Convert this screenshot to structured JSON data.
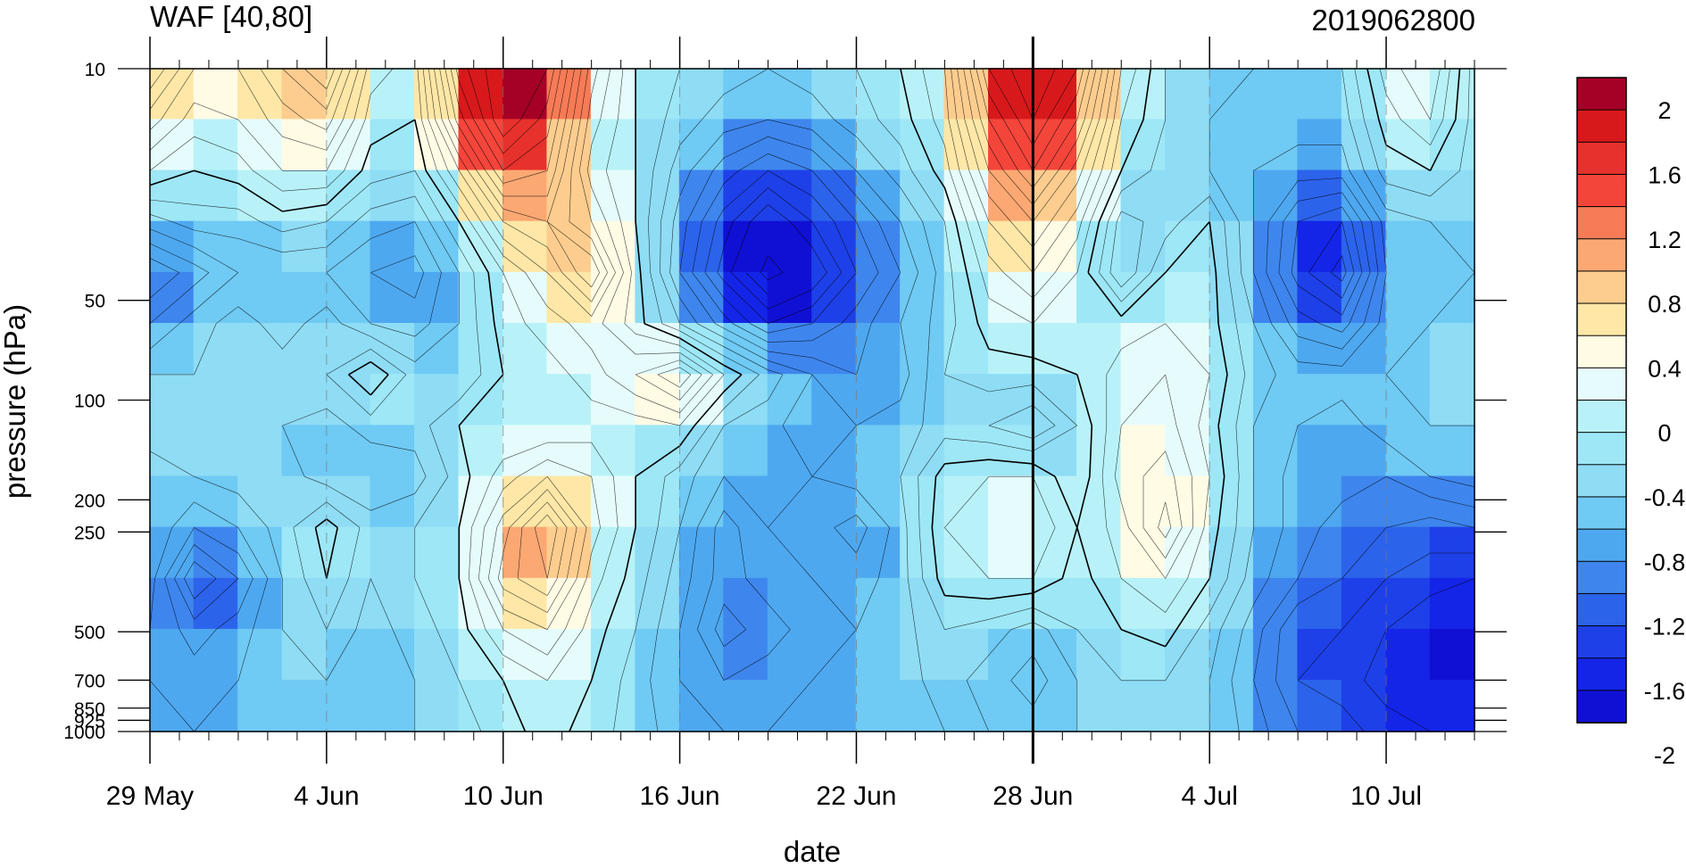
{
  "chart_data": {
    "type": "heatmap",
    "title_left": "WAF [40,80]",
    "title_right": "2019062800",
    "xlabel": "date",
    "ylabel": "pressure (hPa)",
    "x_tick_labels": [
      "29 May",
      "4 Jun",
      "10 Jun",
      "16 Jun",
      "22 Jun",
      "28 Jun",
      "4 Jul",
      "10 Jul"
    ],
    "x_range_days": [
      0,
      45
    ],
    "y_tick_labels": [
      "10",
      "50",
      "100",
      "200",
      "250",
      "500",
      "700",
      "850",
      "925",
      "1000"
    ],
    "y_levels": [
      10,
      50,
      100,
      200,
      250,
      500,
      700,
      850,
      925,
      1000
    ],
    "y_scale": "log",
    "y_range": [
      1000,
      10
    ],
    "current_date_line": "28 Jun",
    "colorbar": {
      "labels": [
        "2",
        "1.6",
        "1.2",
        "0.8",
        "0.4",
        "0",
        "-0.4",
        "-0.8",
        "-1.2",
        "-1.6",
        "-2"
      ],
      "colors": [
        "#a50026",
        "#d7191c",
        "#e7312c",
        "#f4453b",
        "#f67b56",
        "#fba873",
        "#fdcd8f",
        "#fee7a7",
        "#fffbe5",
        "#e6fcfc",
        "#b8f2f8",
        "#9ee7f6",
        "#8fdcf5",
        "#6fcaf4",
        "#4ea8f0",
        "#3e86ed",
        "#2c63eb",
        "#1e40e8",
        "#1425e8",
        "#1010d4"
      ]
    },
    "grid_values": [
      [
        1.2,
        0.6,
        0.6,
        1.0,
        1.4,
        0.3,
        0.1,
        1.7,
        2.2,
        2.0,
        0.7,
        0.0,
        -0.2,
        -0.3,
        -0.4,
        -0.3,
        -0.2,
        0.0,
        0.4,
        1.8,
        2.2,
        1.8,
        0.4,
        -0.2,
        -0.4,
        -0.4,
        -0.4,
        -0.4,
        0.3,
        0.6,
        -0.3
      ],
      [
        0.7,
        0.3,
        0.4,
        0.7,
        0.9,
        0.1,
        0.0,
        1.3,
        2.2,
        1.7,
        0.5,
        0.0,
        -0.3,
        -0.5,
        -0.6,
        -0.5,
        -0.3,
        -0.1,
        0.3,
        1.4,
        2.0,
        1.4,
        0.2,
        -0.2,
        -0.4,
        -0.5,
        -0.5,
        -0.5,
        0.1,
        0.4,
        -0.3
      ],
      [
        0.2,
        0.0,
        0.1,
        0.4,
        0.4,
        -0.1,
        -0.2,
        0.6,
        1.6,
        1.4,
        0.3,
        0.0,
        -0.5,
        -0.9,
        -1.2,
        -1.0,
        -0.6,
        -0.3,
        0.1,
        1.0,
        1.6,
        0.9,
        0.0,
        -0.3,
        -0.4,
        -0.6,
        -0.7,
        -0.7,
        -0.1,
        0.0,
        -0.3
      ],
      [
        -0.5,
        -0.3,
        -0.3,
        -0.1,
        -0.2,
        -0.5,
        -0.6,
        0.0,
        0.8,
        1.0,
        0.6,
        0.0,
        -0.7,
        -1.3,
        -1.8,
        -1.4,
        -1.0,
        -0.6,
        -0.2,
        0.6,
        1.0,
        0.5,
        -0.5,
        -0.3,
        0.0,
        -0.6,
        -1.2,
        -1.4,
        -0.5,
        -0.4,
        -0.4
      ],
      [
        -1.2,
        -0.9,
        -0.6,
        -0.6,
        -0.6,
        -0.8,
        -0.9,
        -0.4,
        0.2,
        0.6,
        1.2,
        0.1,
        -0.8,
        -1.5,
        -2.1,
        -1.8,
        -1.2,
        -0.8,
        -0.3,
        0.3,
        0.6,
        0.2,
        -0.6,
        0.0,
        0.1,
        -0.6,
        -1.3,
        -1.7,
        -0.6,
        -0.5,
        -0.4
      ],
      [
        -0.8,
        -0.5,
        -0.3,
        -0.5,
        -0.3,
        -0.6,
        -0.7,
        -0.4,
        0.1,
        0.3,
        0.5,
        0.1,
        -0.4,
        -0.9,
        -1.4,
        -1.2,
        -0.9,
        -0.6,
        -0.3,
        0.1,
        0.2,
        0.0,
        0.1,
        0.2,
        0.1,
        -0.4,
        -0.9,
        -1.1,
        -0.5,
        -0.4,
        -0.3
      ],
      [
        -0.4,
        -0.4,
        -0.3,
        -0.3,
        -0.2,
        0.2,
        -0.3,
        -0.4,
        0.0,
        0.1,
        0.3,
        0.6,
        1.0,
        0.2,
        -0.3,
        -0.6,
        -0.8,
        -0.7,
        -0.2,
        -0.1,
        -0.1,
        0.0,
        0.3,
        0.4,
        0.2,
        -0.3,
        -0.5,
        -0.5,
        -0.4,
        -0.4,
        -0.3
      ],
      [
        -0.3,
        -0.2,
        -0.4,
        -0.4,
        -0.5,
        -0.3,
        -0.3,
        0.0,
        0.0,
        0.0,
        0.1,
        0.1,
        0.2,
        -0.4,
        -0.5,
        -0.8,
        -0.6,
        -0.5,
        -0.3,
        -0.4,
        -0.6,
        -0.2,
        0.4,
        0.5,
        0.1,
        -0.4,
        -0.6,
        -0.7,
        -0.5,
        -0.4,
        -0.4
      ],
      [
        -0.5,
        -0.4,
        -0.3,
        -0.3,
        -0.5,
        -0.6,
        -0.5,
        -0.1,
        0.3,
        0.6,
        0.4,
        0.0,
        -0.3,
        -0.6,
        -0.5,
        -0.6,
        -0.5,
        -0.4,
        0.1,
        0.2,
        0.2,
        -0.2,
        0.5,
        0.7,
        0.2,
        -0.4,
        -0.7,
        -0.7,
        -0.8,
        -0.6,
        -0.5
      ],
      [
        -0.4,
        -0.8,
        -0.6,
        -0.3,
        0.1,
        -0.3,
        -0.2,
        0.0,
        0.7,
        1.4,
        0.5,
        0.0,
        -0.4,
        -0.9,
        -0.6,
        -0.7,
        -0.9,
        -0.5,
        0.2,
        0.3,
        0.4,
        0.0,
        0.3,
        0.9,
        0.1,
        -0.4,
        -0.7,
        -0.9,
        -1.0,
        -1.1,
        -1.0
      ],
      [
        -0.5,
        -1.4,
        -1.0,
        -0.4,
        0.0,
        -0.4,
        -0.2,
        0.0,
        0.9,
        1.2,
        0.3,
        -0.1,
        -0.5,
        -0.9,
        -0.7,
        -0.6,
        -0.7,
        -0.5,
        0.1,
        0.2,
        0.2,
        -0.1,
        0.2,
        0.4,
        0.0,
        -0.5,
        -0.8,
        -1.0,
        -1.2,
        -1.3,
        -1.4
      ],
      [
        -0.6,
        -0.9,
        -0.7,
        -0.4,
        -0.2,
        -0.5,
        -0.3,
        -0.1,
        0.4,
        0.6,
        0.1,
        -0.2,
        -0.6,
        -1.1,
        -0.9,
        -0.7,
        -0.6,
        -0.5,
        -0.2,
        -0.3,
        -0.5,
        -0.2,
        0.0,
        0.1,
        -0.3,
        -0.7,
        -1.2,
        -1.2,
        -1.4,
        -1.6,
        -1.6
      ],
      [
        -0.6,
        -0.7,
        -0.6,
        -0.5,
        -0.4,
        -0.5,
        -0.4,
        -0.2,
        0.0,
        0.2,
        0.0,
        -0.3,
        -0.6,
        -0.8,
        -0.7,
        -0.6,
        -0.6,
        -0.5,
        -0.3,
        -0.5,
        -0.7,
        -0.4,
        -0.2,
        -0.2,
        -0.4,
        -0.8,
        -1.2,
        -1.3,
        -1.5,
        -1.6,
        -1.7
      ],
      [
        -0.5,
        -0.6,
        -0.5,
        -0.5,
        -0.5,
        -0.5,
        -0.4,
        -0.3,
        -0.1,
        0.1,
        -0.1,
        -0.3,
        -0.5,
        -0.6,
        -0.6,
        -0.6,
        -0.6,
        -0.5,
        -0.4,
        -0.4,
        -0.5,
        -0.4,
        -0.3,
        -0.3,
        -0.4,
        -0.7,
        -1.0,
        -1.1,
        -1.3,
        -1.4,
        -1.5
      ]
    ]
  }
}
